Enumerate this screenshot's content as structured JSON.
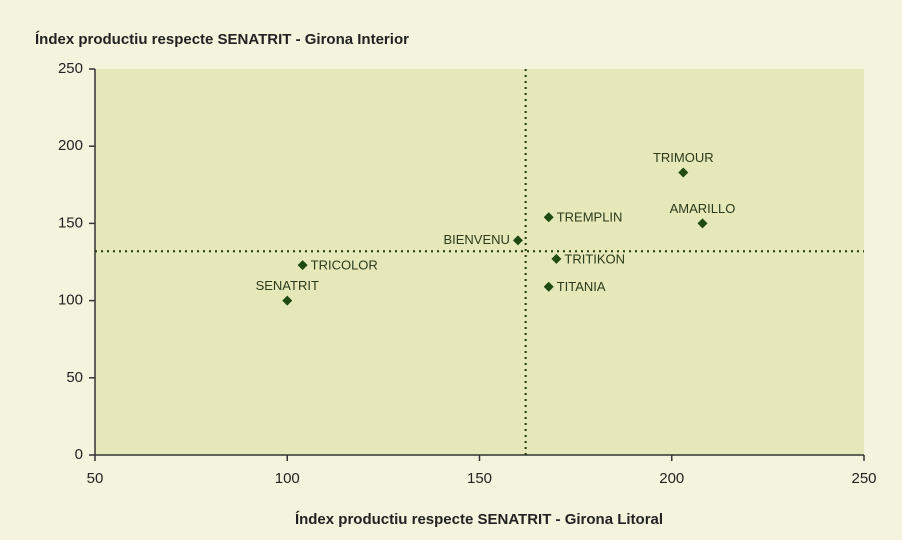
{
  "chart_data": {
    "type": "scatter",
    "y_label": "Índex productiu respecte SENATRIT - Girona Interior",
    "x_label": "Índex productiu respecte SENATRIT - Girona Litoral",
    "series": [
      {
        "name": null,
        "color": "#1f4a12",
        "labels": [
          "SENATRIT",
          "TRICOLOR",
          "BIENVENU",
          "TREMPLIN",
          "TRITIKON",
          "TITANIA",
          "TRIMOUR",
          "AMARILLO"
        ],
        "x": [
          100,
          104,
          160,
          168,
          170,
          168,
          203,
          208
        ],
        "values": [
          100,
          123,
          139,
          154,
          127,
          109,
          183,
          150
        ]
      }
    ],
    "reference_lines": {
      "x": 162,
      "y": 132
    },
    "xlim": [
      50,
      250
    ],
    "xticks": [
      50,
      100,
      150,
      200,
      250
    ],
    "ylim": [
      0,
      250
    ],
    "yticks": [
      0,
      50,
      100,
      150,
      200,
      250
    ],
    "grid": false
  }
}
